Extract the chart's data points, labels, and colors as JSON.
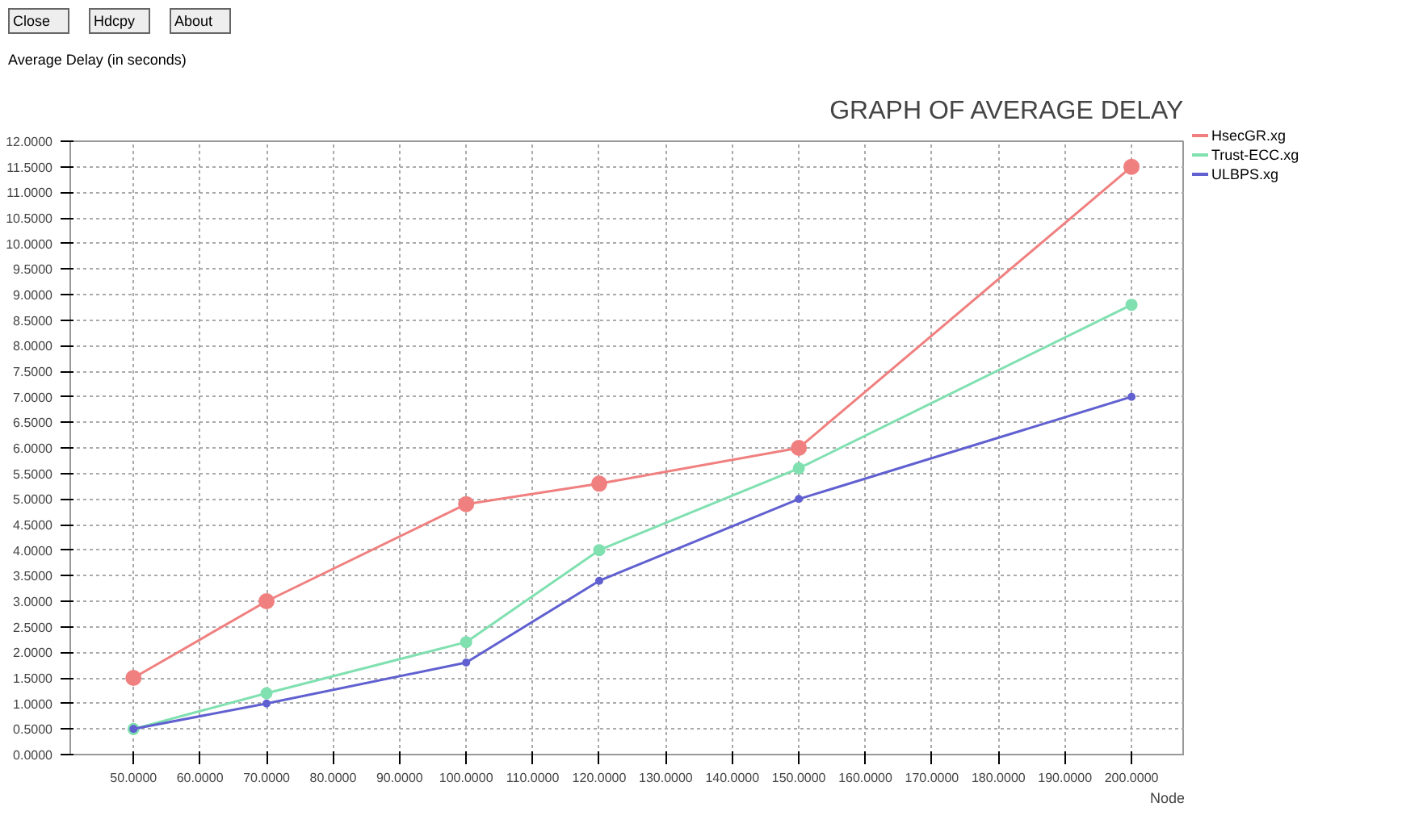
{
  "chart_data": {
    "type": "line",
    "title": "GRAPH OF AVERAGE DELAY",
    "ylabel": "Average Delay (in seconds)",
    "xlabel": "Node",
    "annotations": [
      "Close",
      "Hdcpy",
      "About"
    ],
    "x": [
      50,
      70,
      100,
      120,
      150,
      200
    ],
    "series": [
      {
        "name": "HsecGR.xg",
        "color": "#f08080",
        "values": [
          1.5,
          3.0,
          4.9,
          5.3,
          6.0,
          11.5
        ]
      },
      {
        "name": "Trust-ECC.xg",
        "color": "#80e0b0",
        "values": [
          0.5,
          1.2,
          2.2,
          4.0,
          5.6,
          8.8
        ]
      },
      {
        "name": "ULBPS.xg",
        "color": "#6060d0",
        "values": [
          0.5,
          1.0,
          1.8,
          3.4,
          5.0,
          7.0
        ]
      }
    ],
    "xlim": [
      40.5,
      208
    ],
    "xticks": [
      {
        "value": 50,
        "label": "50.0000"
      },
      {
        "value": 60,
        "label": "60.0000"
      },
      {
        "value": 70,
        "label": "70.0000"
      },
      {
        "value": 80,
        "label": "80.0000"
      },
      {
        "value": 90,
        "label": "90.0000"
      },
      {
        "value": 100,
        "label": "100.0000"
      },
      {
        "value": 110,
        "label": "110.0000"
      },
      {
        "value": 120,
        "label": "120.0000"
      },
      {
        "value": 130,
        "label": "130.0000"
      },
      {
        "value": 140,
        "label": "140.0000"
      },
      {
        "value": 150,
        "label": "150.0000"
      },
      {
        "value": 160,
        "label": "160.0000"
      },
      {
        "value": 170,
        "label": "170.0000"
      },
      {
        "value": 180,
        "label": "180.0000"
      },
      {
        "value": 190,
        "label": "190.0000"
      },
      {
        "value": 200,
        "label": "200.0000"
      }
    ],
    "ylim": [
      0,
      12
    ],
    "yticks": [
      {
        "value": 0,
        "label": "0.0000"
      },
      {
        "value": 0.5,
        "label": "0.5000"
      },
      {
        "value": 1,
        "label": "1.0000"
      },
      {
        "value": 1.5,
        "label": "1.5000"
      },
      {
        "value": 2,
        "label": "2.0000"
      },
      {
        "value": 2.5,
        "label": "2.5000"
      },
      {
        "value": 3,
        "label": "3.0000"
      },
      {
        "value": 3.5,
        "label": "3.5000"
      },
      {
        "value": 4,
        "label": "4.0000"
      },
      {
        "value": 4.5,
        "label": "4.5000"
      },
      {
        "value": 5,
        "label": "5.0000"
      },
      {
        "value": 5.5,
        "label": "5.5000"
      },
      {
        "value": 6,
        "label": "6.0000"
      },
      {
        "value": 6.5,
        "label": "6.5000"
      },
      {
        "value": 7,
        "label": "7.0000"
      },
      {
        "value": 7.5,
        "label": "7.5000"
      },
      {
        "value": 8,
        "label": "8.0000"
      },
      {
        "value": 8.5,
        "label": "8.5000"
      },
      {
        "value": 9,
        "label": "9.0000"
      },
      {
        "value": 9.5,
        "label": "9.5000"
      },
      {
        "value": 10,
        "label": "10.0000"
      },
      {
        "value": 10.5,
        "label": "10.5000"
      },
      {
        "value": 11,
        "label": "11.0000"
      },
      {
        "value": 11.5,
        "label": "11.5000"
      },
      {
        "value": 12,
        "label": "12.0000"
      }
    ],
    "grid": true,
    "legend": "top right",
    "marker": "circle",
    "line_style": "solid"
  }
}
